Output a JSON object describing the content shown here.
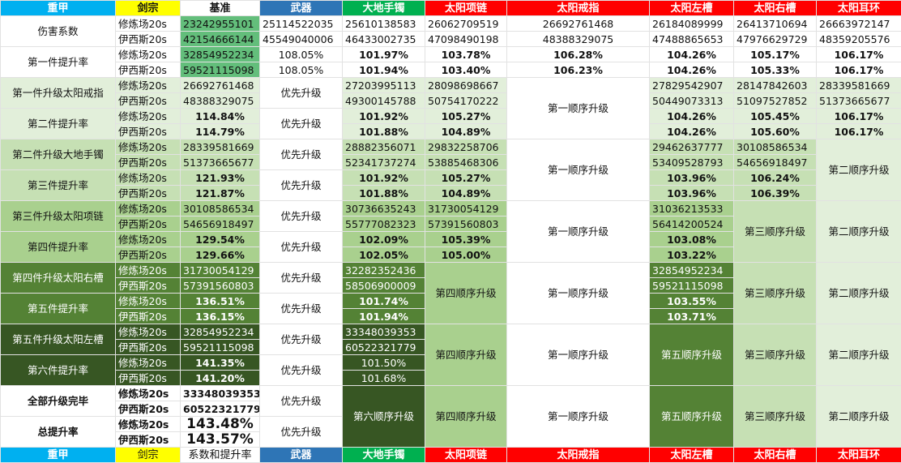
{
  "header": [
    "重甲",
    "剑宗",
    "基准",
    "武器",
    "大地手镯",
    "太阳项链",
    "太阳戒指",
    "太阳左槽",
    "太阳右槽",
    "太阳耳环"
  ],
  "footer": [
    "重甲",
    "剑宗",
    "系数和提升率",
    "武器",
    "大地手镯",
    "太阳项链",
    "太阳戒指",
    "太阳左槽",
    "太阳右槽",
    "太阳耳环"
  ],
  "labels": {
    "damage": "伤害系数",
    "inc1": "第一件提升率",
    "up1": "第一件升级太阳戒指",
    "inc2": "第二件提升率",
    "up2": "第二件升级大地手镯",
    "inc3": "第三件提升率",
    "up3": "第三件升级太阳项链",
    "inc4": "第四件提升率",
    "up4": "第四件升级太阳右槽",
    "inc5": "第五件提升率",
    "up5": "第五件升级太阳左槽",
    "inc6": "第六件提升率",
    "done": "全部升级完毕",
    "total": "总提升率"
  },
  "modes": {
    "a": "修炼场20s",
    "b": "伊西斯20s"
  },
  "priority": "优先升级",
  "order": {
    "o1": "第一顺序升级",
    "o2": "第二顺序升级",
    "o3": "第三顺序升级",
    "o4": "第四顺序升级",
    "o5": "第五顺序升级",
    "o6": "第六顺序升级"
  },
  "rows": {
    "r1": [
      "23242955101",
      "25114522035",
      "25610138583",
      "26062709519",
      "26692761468",
      "26184089999",
      "26413710694",
      "26663972147"
    ],
    "r2": [
      "42154666144",
      "45549040006",
      "46433002735",
      "47098490198",
      "48388329075",
      "47488865653",
      "47976629729",
      "48359205576"
    ],
    "r3": [
      "32854952234",
      "108.05%",
      "101.97%",
      "103.78%",
      "106.28%",
      "104.26%",
      "105.17%",
      "106.17%"
    ],
    "r4": [
      "59521115098",
      "108.05%",
      "101.94%",
      "103.40%",
      "106.23%",
      "104.26%",
      "105.33%",
      "106.17%"
    ],
    "r5": [
      "26692761468",
      "27203995113",
      "28098698667",
      "27829542907",
      "28147842603",
      "28339581669"
    ],
    "r6": [
      "48388329075",
      "49300145788",
      "50754170222",
      "50449073313",
      "51097527852",
      "51373665677"
    ],
    "r7": [
      "114.84%",
      "101.92%",
      "105.27%",
      "104.26%",
      "105.45%",
      "106.17%"
    ],
    "r8": [
      "114.79%",
      "101.88%",
      "104.89%",
      "104.26%",
      "105.60%",
      "106.17%"
    ],
    "r9": [
      "28339581669",
      "28882356071",
      "29832258706",
      "29462637777",
      "30108586534"
    ],
    "r10": [
      "51373665677",
      "52341737274",
      "53885468306",
      "53409528793",
      "54656918497"
    ],
    "r11": [
      "121.93%",
      "101.92%",
      "105.27%",
      "103.96%",
      "106.24%"
    ],
    "r12": [
      "121.87%",
      "101.88%",
      "104.89%",
      "103.96%",
      "106.39%"
    ],
    "r13": [
      "30108586534",
      "30736635243",
      "31730054129",
      "31036213533"
    ],
    "r14": [
      "54656918497",
      "55777082323",
      "57391560803",
      "56414200524"
    ],
    "r15": [
      "129.54%",
      "102.09%",
      "105.39%",
      "103.08%"
    ],
    "r16": [
      "129.66%",
      "102.05%",
      "105.00%",
      "103.22%"
    ],
    "r17": [
      "31730054129",
      "32282352436",
      "32854952234"
    ],
    "r18": [
      "57391560803",
      "58506900009",
      "59521115098"
    ],
    "r19": [
      "136.51%",
      "101.74%",
      "103.55%"
    ],
    "r20": [
      "136.15%",
      "101.94%",
      "103.71%"
    ],
    "r21": [
      "32854952234",
      "33348039353"
    ],
    "r22": [
      "59521115098",
      "60522321779"
    ],
    "r23": [
      "141.35%",
      "101.50%"
    ],
    "r24": [
      "141.20%",
      "101.68%"
    ],
    "r25": [
      "33348039353"
    ],
    "r26": [
      "60522321779"
    ],
    "r27": [
      "143.48%"
    ],
    "r28": [
      "143.57%"
    ]
  }
}
